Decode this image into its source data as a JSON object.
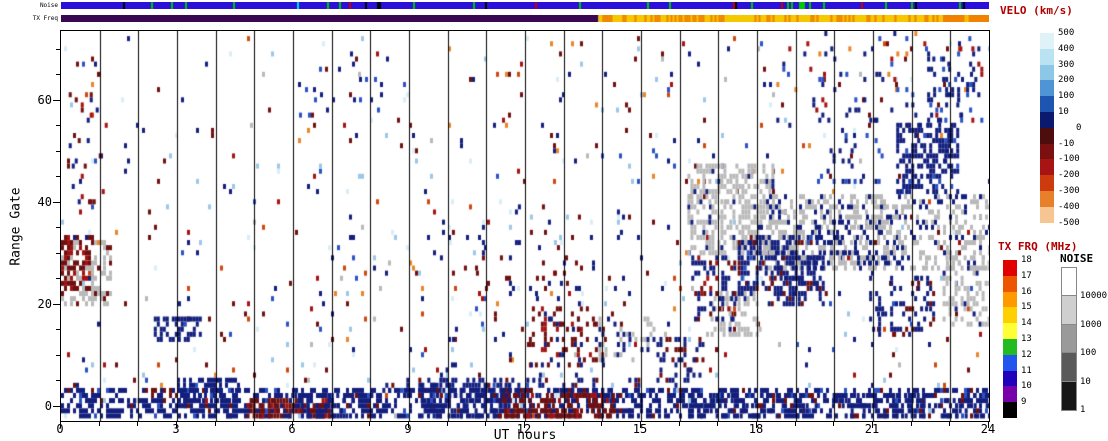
{
  "chart_data": {
    "type": "heatmap",
    "summary": "24-hour SuperDARN-style range-time plot: Doppler velocity scatter cells (blue toward, red away, gray ground scatter) vs UT hour and range gate, with noise and TX frequency strips on top and velocity / TX frequency / noise color bars on the right.",
    "xlabel": "UT hours",
    "ylabel": "Range Gate",
    "xlim": [
      0,
      24
    ],
    "ylim": [
      0,
      75
    ],
    "x_major_ticks": [
      0,
      3,
      6,
      9,
      12,
      15,
      18,
      21,
      24
    ],
    "x_minor_step": 1,
    "y_major_ticks": [
      0,
      20,
      40,
      60
    ],
    "y_minor_step": 5,
    "hour_gridlines": true,
    "strips": {
      "noise": {
        "label": "Noise",
        "base_color": "#2a10d8",
        "specks": [
          {
            "color": "#00c800",
            "p": 0.05
          },
          {
            "color": "#000000",
            "p": 0.012
          },
          {
            "color": "#c80000",
            "p": 0.006
          },
          {
            "color": "#00e0e0",
            "p": 0.006
          }
        ]
      },
      "txfreq": {
        "label": "TX Freq",
        "segments": [
          {
            "h0": 0,
            "h1": 13.9,
            "color": "#3a0850"
          },
          {
            "h0": 13.9,
            "h1": 22.8,
            "color": "#f6c800",
            "speck": "#f08200",
            "p": 0.3
          },
          {
            "h0": 22.8,
            "h1": 24,
            "color": "#f08200",
            "speck": "#f6c800",
            "p": 0.15
          }
        ]
      }
    },
    "colorbars": {
      "velocity": {
        "title": "VELO (km/s)",
        "labels": [
          "500",
          "400",
          "300",
          "200",
          "100",
          "10",
          "-10",
          "-100",
          "-200",
          "-300",
          "-400",
          "-500"
        ],
        "zero_label": "0",
        "colors": [
          "#dff2f8",
          "#b9e2f2",
          "#8cc7e8",
          "#4f94d4",
          "#1d56b0",
          "#0b1a6e",
          "#4d0d0d",
          "#7a1010",
          "#a81414",
          "#cc3a0e",
          "#e87f2a",
          "#f6c592"
        ]
      },
      "txfrq": {
        "title": "TX FRQ (MHz)",
        "labels": [
          "18",
          "17",
          "16",
          "15",
          "14",
          "13",
          "12",
          "11",
          "10",
          "9"
        ],
        "colors": [
          "#e00000",
          "#ee5500",
          "#ff9900",
          "#ffd000",
          "#ffff33",
          "#22bb22",
          "#2255ee",
          "#2200bb",
          "#7700aa",
          "#000000"
        ]
      },
      "noise": {
        "title": "NOISE",
        "labels": [
          "10000",
          "1000",
          "100",
          "10",
          "1"
        ],
        "colors": [
          "#ffffff",
          "#cfcfcf",
          "#9a9a9a",
          "#5a5a5a",
          "#161616"
        ]
      }
    },
    "palette": {
      "darkblue": "#131f7d",
      "blue": "#2a52c4",
      "lightblue": "#9cc7e6",
      "paleblue": "#d9edf6",
      "darkred": "#6f1010",
      "red": "#a41212",
      "orangered": "#cc4a12",
      "orange": "#e8862c",
      "peach": "#f3c38e",
      "gray": "#b9b9b9"
    },
    "background": {
      "density": 0.03,
      "colors": {
        "darkblue": 0.26,
        "darkred": 0.2,
        "blue": 0.08,
        "lightblue": 0.12,
        "paleblue": 0.08,
        "gray": 0.07,
        "red": 0.07,
        "orangered": 0.06,
        "orange": 0.06
      }
    },
    "clusters": [
      {
        "h": [
          0,
          24
        ],
        "g": [
          -2,
          4
        ],
        "density": 0.5,
        "colors": {
          "darkblue": 0.84,
          "darkred": 0.1,
          "blue": 0.06
        }
      },
      {
        "h": [
          8,
          15
        ],
        "g": [
          2,
          6
        ],
        "density": 0.28,
        "colors": {
          "darkblue": 0.85,
          "darkred": 0.15
        }
      },
      {
        "h": [
          4.8,
          6.9
        ],
        "g": [
          -2,
          2
        ],
        "density": 0.5,
        "colors": {
          "darkred": 0.85,
          "red": 0.15
        }
      },
      {
        "h": [
          11.3,
          14.3
        ],
        "g": [
          -2,
          3
        ],
        "density": 0.5,
        "colors": {
          "darkred": 0.8,
          "red": 0.2
        }
      },
      {
        "h": [
          0,
          1.3
        ],
        "g": [
          20,
          33
        ],
        "density": 0.45,
        "colors": {
          "gray": 0.85,
          "darkred": 0.15
        }
      },
      {
        "h": [
          0,
          0.8
        ],
        "g": [
          23,
          34
        ],
        "density": 0.5,
        "colors": {
          "darkred": 0.72,
          "red": 0.28
        }
      },
      {
        "h": [
          2.4,
          3.7
        ],
        "g": [
          13,
          18
        ],
        "density": 0.5,
        "colors": {
          "darkblue": 0.9,
          "blue": 0.1
        }
      },
      {
        "h": [
          3.0,
          4.6
        ],
        "g": [
          1,
          6
        ],
        "density": 0.6,
        "colors": {
          "darkblue": 0.95,
          "blue": 0.05
        }
      },
      {
        "h": [
          5.8,
          7.6
        ],
        "g": [
          -2,
          3
        ],
        "density": 0.4,
        "colors": {
          "darkblue": 1
        }
      },
      {
        "h": [
          16.2,
          18.4
        ],
        "g": [
          30,
          48
        ],
        "density": 0.5,
        "colors": {
          "gray": 0.92,
          "darkblue": 0.08
        }
      },
      {
        "h": [
          16.8,
          18.1
        ],
        "g": [
          14,
          23
        ],
        "density": 0.42,
        "colors": {
          "gray": 0.9,
          "darkblue": 0.1
        }
      },
      {
        "h": [
          18.0,
          24
        ],
        "g": [
          27,
          42
        ],
        "density": 0.4,
        "colors": {
          "gray": 0.78,
          "darkblue": 0.22
        }
      },
      {
        "h": [
          22.8,
          24
        ],
        "g": [
          16,
          30
        ],
        "density": 0.38,
        "colors": {
          "gray": 0.9,
          "darkblue": 0.1
        }
      },
      {
        "h": [
          16.3,
          17.4
        ],
        "g": [
          17,
          30
        ],
        "density": 0.33,
        "colors": {
          "darkblue": 0.7,
          "red": 0.15,
          "darkred": 0.15
        }
      },
      {
        "h": [
          17.5,
          19.6
        ],
        "g": [
          22,
          34
        ],
        "density": 0.42,
        "colors": {
          "darkblue": 0.72,
          "blue": 0.1,
          "darkred": 0.18
        }
      },
      {
        "h": [
          21.6,
          23.2
        ],
        "g": [
          42,
          56
        ],
        "density": 0.55,
        "colors": {
          "darkblue": 0.88,
          "blue": 0.12
        }
      },
      {
        "h": [
          20.9,
          22.6
        ],
        "g": [
          14,
          26
        ],
        "density": 0.28,
        "colors": {
          "darkblue": 0.8,
          "darkred": 0.2
        }
      },
      {
        "h": [
          19.5,
          21.6
        ],
        "g": [
          28,
          38
        ],
        "density": 0.3,
        "colors": {
          "darkblue": 0.72,
          "gray": 0.28
        }
      },
      {
        "h": [
          12.1,
          14.1
        ],
        "g": [
          8,
          20
        ],
        "density": 0.26,
        "colors": {
          "darkred": 0.68,
          "red": 0.2,
          "darkblue": 0.12
        }
      },
      {
        "h": [
          15.4,
          16.6
        ],
        "g": [
          4,
          14
        ],
        "density": 0.28,
        "colors": {
          "darkblue": 0.7,
          "darkred": 0.3
        }
      },
      {
        "h": [
          22.4,
          23.6
        ],
        "g": [
          56,
          70
        ],
        "density": 0.2,
        "colors": {
          "darkblue": 0.8,
          "blue": 0.2
        }
      },
      {
        "h": [
          13.9,
          15.3
        ],
        "g": [
          9,
          18
        ],
        "density": 0.28,
        "colors": {
          "gray": 0.65,
          "darkblue": 0.35
        }
      },
      {
        "h": [
          9.3,
          11.6
        ],
        "g": [
          -2,
          5
        ],
        "density": 0.4,
        "colors": {
          "darkblue": 0.95,
          "blue": 0.05
        }
      },
      {
        "h": [
          0.2,
          1.2
        ],
        "g": [
          40,
          62
        ],
        "density": 0.09,
        "colors": {
          "darkred": 0.5,
          "red": 0.2,
          "darkblue": 0.3
        }
      },
      {
        "h": [
          16,
          24
        ],
        "g": [
          -2,
          3
        ],
        "density": 0.25,
        "colors": {
          "darkblue": 1
        }
      },
      {
        "h": [
          18.2,
          19.8
        ],
        "g": [
          20,
          30
        ],
        "density": 0.35,
        "colors": {
          "darkblue": 0.85,
          "darkred": 0.15
        }
      },
      {
        "h": [
          19.8,
          21.2
        ],
        "g": [
          44,
          54
        ],
        "density": 0.14,
        "colors": {
          "darkblue": 0.8,
          "blue": 0.2
        }
      },
      {
        "h": [
          9.8,
          14.6
        ],
        "g": [
          0,
          40
        ],
        "density": 0.05,
        "colors": {
          "darkblue": 0.45,
          "darkred": 0.3,
          "lightblue": 0.12,
          "paleblue": 0.13
        }
      },
      {
        "h": [
          18.5,
          23.8
        ],
        "g": [
          55,
          75
        ],
        "density": 0.06,
        "colors": {
          "darkblue": 0.5,
          "blue": 0.2,
          "red": 0.15,
          "orange": 0.15
        }
      },
      {
        "h": [
          6.0,
          8.5
        ],
        "g": [
          55,
          70
        ],
        "density": 0.05,
        "colors": {
          "darkblue": 0.6,
          "blue": 0.2,
          "darkred": 0.2
        }
      }
    ]
  }
}
